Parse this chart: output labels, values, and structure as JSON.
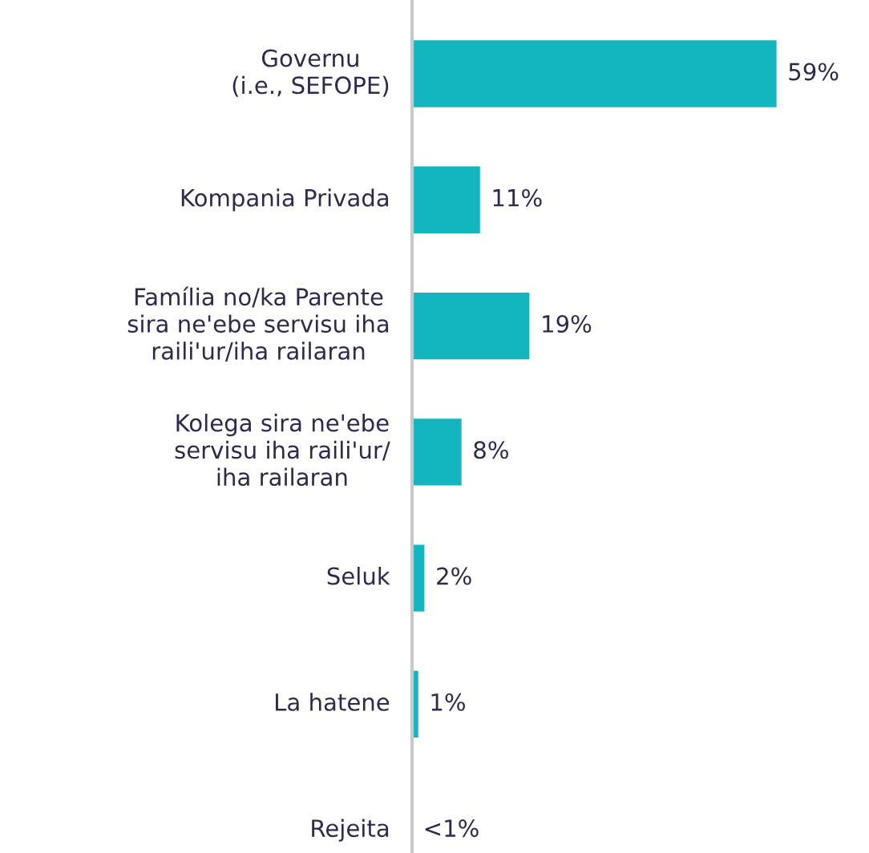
{
  "chart_data": {
    "type": "bar",
    "orientation": "horizontal",
    "categories": [
      "Governu\n(i.e., SEFOPE)",
      "Kompania Privada",
      "Família no/ka Parente\nsira ne'ebe servisu iha\nraili'ur/iha railaran",
      "Kolega sira ne'ebe\nservisu iha raili'ur/\niha railaran",
      "Seluk",
      "La hatene",
      "Rejeita"
    ],
    "values": [
      59,
      11,
      19,
      8,
      2,
      1,
      0
    ],
    "value_labels": [
      "59%",
      "11%",
      "19%",
      "8%",
      "2%",
      "1%",
      "<1%"
    ],
    "color": "#13b5bf"
  }
}
